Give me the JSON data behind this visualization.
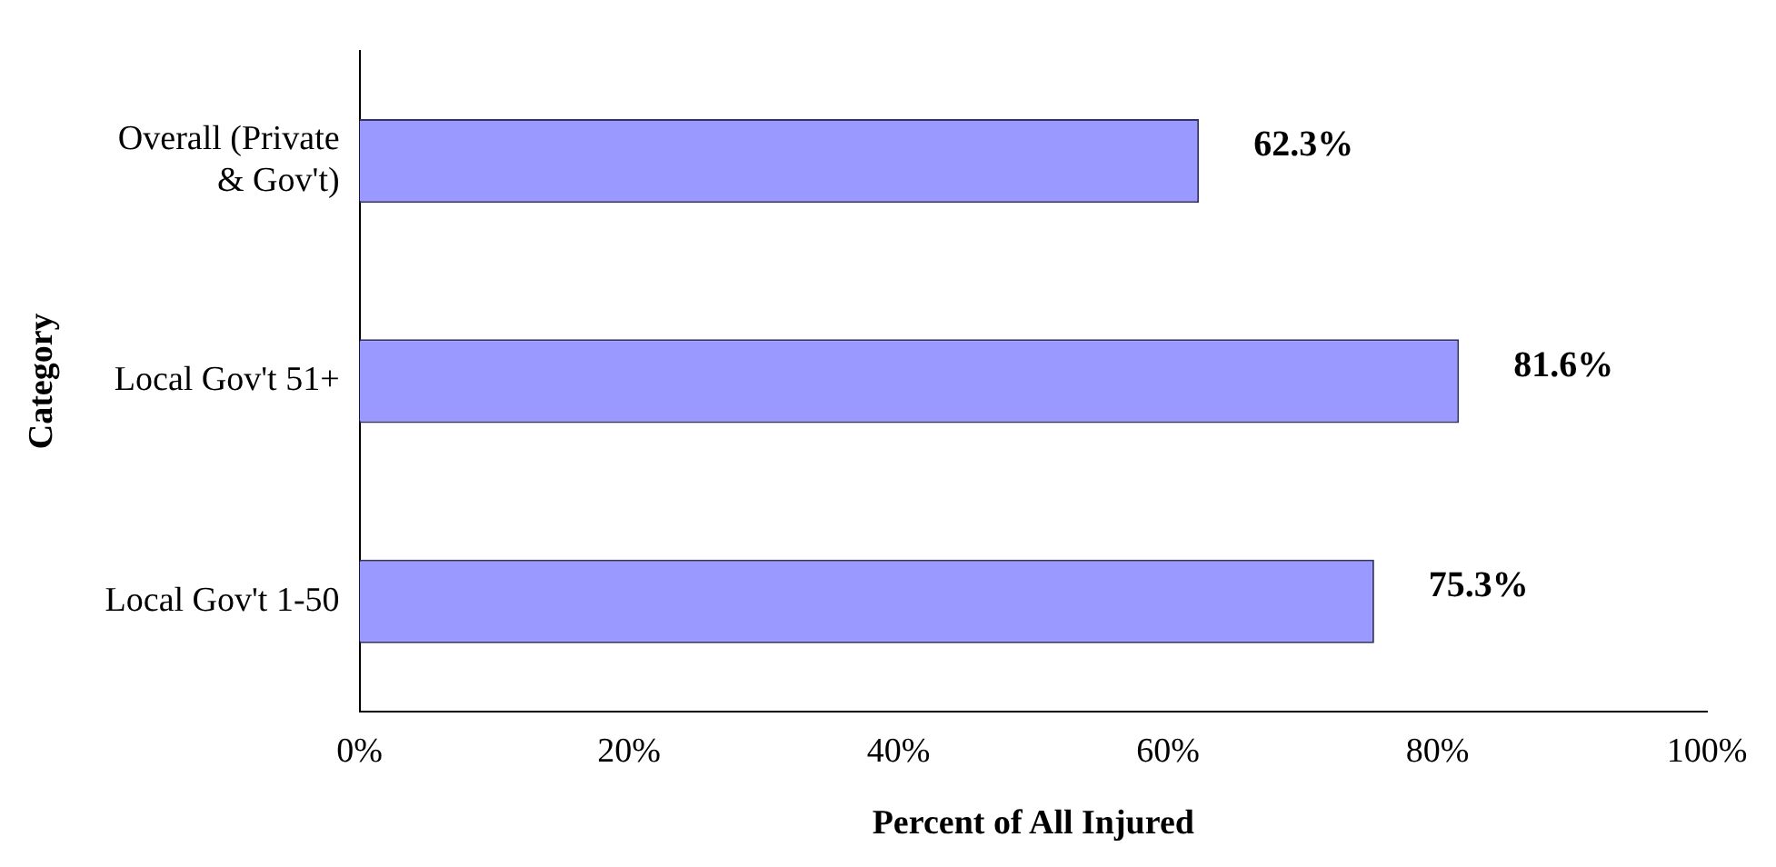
{
  "chart_data": {
    "type": "bar",
    "orientation": "horizontal",
    "xlabel": "Percent of All Injured",
    "ylabel": "Category",
    "categories": [
      "Overall (Private & Gov't)",
      "Local Gov't 51+",
      "Local Gov't 1-50"
    ],
    "values": [
      62.3,
      81.6,
      75.3
    ],
    "color": "#9999ff",
    "value_labels": [
      "62.3%",
      "81.6%",
      "75.3%"
    ],
    "xlim": [
      0,
      100
    ],
    "xticks": [
      {
        "value": 0,
        "label": "0%"
      },
      {
        "value": 20,
        "label": "20%"
      },
      {
        "value": 40,
        "label": "40%"
      },
      {
        "value": 60,
        "label": "60%"
      },
      {
        "value": 80,
        "label": "80%"
      },
      {
        "value": 100,
        "label": "100%"
      }
    ],
    "grid": false,
    "legend": false
  }
}
